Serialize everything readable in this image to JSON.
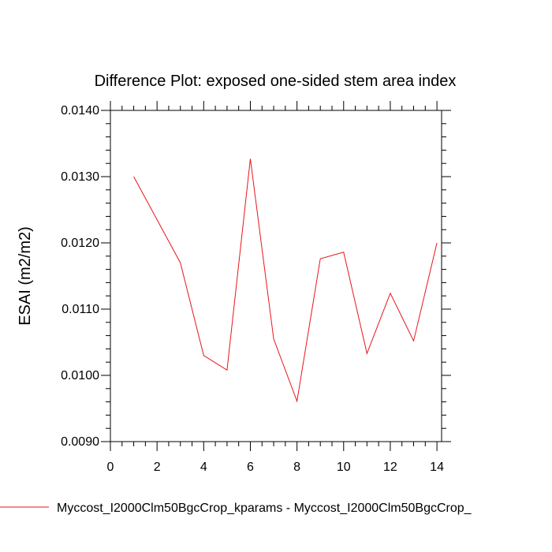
{
  "chart_data": {
    "type": "line",
    "title": "Difference Plot: exposed one-sided stem area index",
    "xlabel": "",
    "ylabel": "ESAI  (m2/m2)",
    "xlim": [
      0,
      14.2
    ],
    "ylim": [
      0.009,
      0.014
    ],
    "x_ticks": [
      "0",
      "2",
      "4",
      "6",
      "8",
      "10",
      "12",
      "14"
    ],
    "y_ticks": [
      "0.0090",
      "0.0100",
      "0.0110",
      "0.0120",
      "0.0130",
      "0.0140"
    ],
    "grid": false,
    "legend_position": "bottom",
    "series": [
      {
        "name": "Myccost_I2000Clm50BgcCrop_kparams - Myccost_I2000Clm50BgcCrop_",
        "color": "#e8151b",
        "x": [
          1,
          2,
          3,
          4,
          5,
          6,
          7,
          8,
          9,
          10,
          11,
          12,
          13,
          14
        ],
        "y": [
          0.013,
          0.01235,
          0.0117,
          0.0103,
          0.01008,
          0.01327,
          0.01055,
          0.00961,
          0.01176,
          0.01186,
          0.01033,
          0.01124,
          0.01052,
          0.012
        ]
      }
    ]
  }
}
